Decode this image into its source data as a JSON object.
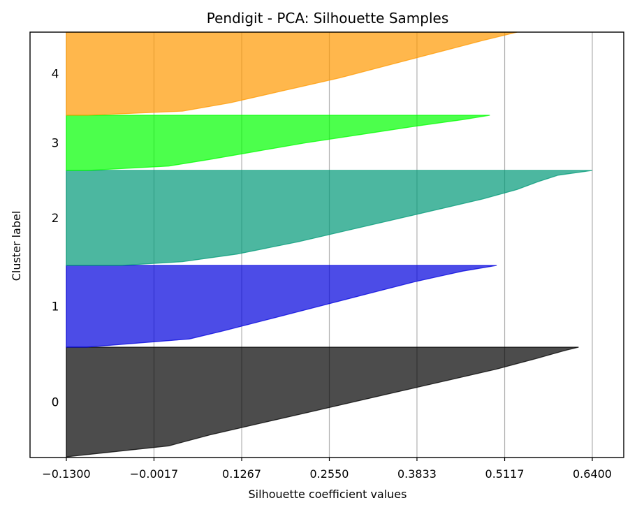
{
  "chart_data": {
    "type": "area",
    "title": "Pendigit - PCA: Silhouette Samples",
    "xlabel": "Silhouette coefficient values",
    "ylabel": "Cluster label",
    "x_ticks": [
      "-0.1300",
      "-0.0017",
      "0.1267",
      "0.2550",
      "0.3833",
      "0.5117",
      "0.6400"
    ],
    "xlim": [
      -0.13,
      0.64
    ],
    "grid": "vertical",
    "clusters": [
      {
        "label": "0",
        "color": "#000000",
        "profile": [
          [
            0,
            0.62
          ],
          [
            0.03,
            0.6
          ],
          [
            0.1,
            0.56
          ],
          [
            0.2,
            0.5
          ],
          [
            0.3,
            0.43
          ],
          [
            0.4,
            0.36
          ],
          [
            0.5,
            0.29
          ],
          [
            0.6,
            0.22
          ],
          [
            0.7,
            0.15
          ],
          [
            0.8,
            0.08
          ],
          [
            0.9,
            0.02
          ],
          [
            1,
            -0.13
          ]
        ]
      },
      {
        "label": "1",
        "color": "#0000dd",
        "profile": [
          [
            0,
            0.5
          ],
          [
            0.07,
            0.45
          ],
          [
            0.2,
            0.38
          ],
          [
            0.35,
            0.31
          ],
          [
            0.5,
            0.24
          ],
          [
            0.65,
            0.17
          ],
          [
            0.8,
            0.1
          ],
          [
            0.9,
            0.05
          ],
          [
            1,
            -0.1
          ]
        ]
      },
      {
        "label": "2",
        "color": "#009977",
        "profile": [
          [
            0,
            0.64
          ],
          [
            0.05,
            0.59
          ],
          [
            0.12,
            0.56
          ],
          [
            0.2,
            0.53
          ],
          [
            0.3,
            0.48
          ],
          [
            0.45,
            0.39
          ],
          [
            0.6,
            0.3
          ],
          [
            0.75,
            0.21
          ],
          [
            0.88,
            0.12
          ],
          [
            0.96,
            0.04
          ],
          [
            1,
            -0.05
          ]
        ]
      },
      {
        "label": "3",
        "color": "#00ff00",
        "profile": [
          [
            0,
            0.49
          ],
          [
            0.08,
            0.45
          ],
          [
            0.2,
            0.38
          ],
          [
            0.35,
            0.3
          ],
          [
            0.5,
            0.22
          ],
          [
            0.65,
            0.15
          ],
          [
            0.8,
            0.08
          ],
          [
            0.92,
            0.02
          ],
          [
            1,
            -0.1
          ]
        ]
      },
      {
        "label": "4",
        "color": "#ff9900",
        "profile": [
          [
            0,
            0.53
          ],
          [
            0.1,
            0.48
          ],
          [
            0.25,
            0.41
          ],
          [
            0.4,
            0.34
          ],
          [
            0.55,
            0.27
          ],
          [
            0.7,
            0.19
          ],
          [
            0.85,
            0.11
          ],
          [
            0.95,
            0.04
          ],
          [
            1,
            -0.1
          ]
        ]
      }
    ]
  }
}
